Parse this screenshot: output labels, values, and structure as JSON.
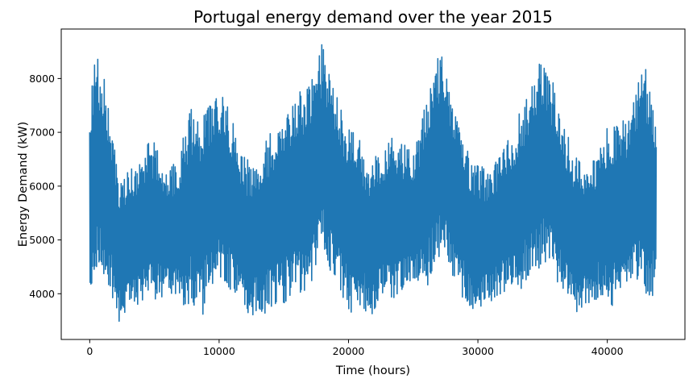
{
  "chart_data": {
    "type": "line",
    "title": "Portugal energy demand over the year 2015",
    "xlabel": "Time (hours)",
    "ylabel": "Energy Demand (kW)",
    "xlim": [
      -2200,
      46000
    ],
    "ylim": [
      3150,
      8920
    ],
    "xticks": [
      0,
      10000,
      20000,
      30000,
      40000
    ],
    "yticks": [
      4000,
      5000,
      6000,
      7000,
      8000
    ],
    "grid": false,
    "legend": "none",
    "series": [
      {
        "color": "#1f77b4",
        "x_range": [
          0,
          43800
        ],
        "envelope": {
          "x": [
            0,
            400,
            1000,
            1600,
            2200,
            3000,
            3800,
            4600,
            5400,
            6200,
            7000,
            7800,
            8600,
            9400,
            10200,
            11000,
            11800,
            12600,
            13400,
            14200,
            15000,
            15800,
            16600,
            17400,
            18000,
            18600,
            19400,
            20200,
            21000,
            21800,
            22600,
            23400,
            24200,
            25000,
            25800,
            26600,
            27200,
            27800,
            28600,
            29400,
            30200,
            31000,
            31800,
            32600,
            33400,
            34200,
            35000,
            35600,
            36200,
            37000,
            37800,
            38600,
            39400,
            40200,
            41000,
            41800,
            42600,
            43200,
            43800
          ],
          "upper": [
            7400,
            8550,
            8200,
            7300,
            6200,
            6300,
            6400,
            7000,
            6600,
            6300,
            6700,
            7500,
            7200,
            7600,
            7800,
            7300,
            6600,
            6400,
            6800,
            7100,
            7300,
            7800,
            7900,
            8300,
            8700,
            8000,
            7500,
            7200,
            6800,
            6400,
            6800,
            6900,
            6800,
            6600,
            7400,
            8300,
            8700,
            7800,
            7200,
            6500,
            6400,
            6200,
            6800,
            7000,
            7500,
            7900,
            8550,
            8100,
            7600,
            6900,
            6500,
            6300,
            6800,
            7200,
            7200,
            7300,
            8300,
            8200,
            7000
          ],
          "lower": [
            3900,
            4400,
            4300,
            4100,
            3400,
            3700,
            3800,
            3900,
            3900,
            4000,
            3700,
            3800,
            3500,
            4100,
            4200,
            4000,
            3700,
            3600,
            3600,
            3700,
            3800,
            3900,
            4000,
            4200,
            4700,
            4300,
            3900,
            3500,
            3700,
            3600,
            3800,
            3900,
            4000,
            4200,
            4000,
            4300,
            4500,
            4400,
            4000,
            3700,
            3700,
            3800,
            3900,
            4000,
            4100,
            4300,
            4500,
            4400,
            4200,
            3900,
            3500,
            3800,
            3900,
            3700,
            4000,
            4200,
            4300,
            3600,
            4300
          ]
        }
      }
    ]
  }
}
